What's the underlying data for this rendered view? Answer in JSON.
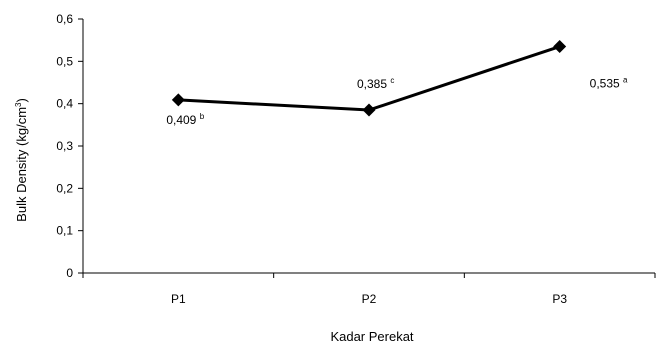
{
  "chart_data": {
    "type": "line",
    "title": "",
    "xlabel": "Kadar Perekat",
    "ylabel": "Bulk Density (kg/cm",
    "ylabel_superscript": "3",
    "ylabel_suffix": ")",
    "categories": [
      "P1",
      "P2",
      "P3"
    ],
    "series": [
      {
        "values": [
          0.409,
          0.385,
          0.535
        ],
        "color": "#000000",
        "marker": "diamond"
      }
    ],
    "data_labels": [
      {
        "text": "0,409",
        "sup": "b",
        "placement": "below"
      },
      {
        "text": "0,385",
        "sup": "c",
        "placement": "above"
      },
      {
        "text": "0,535",
        "sup": "a",
        "placement": "below-right"
      }
    ],
    "ylim": [
      0,
      0.6
    ],
    "yticks": [
      0,
      0.1,
      0.2,
      0.3,
      0.4,
      0.5,
      0.6
    ],
    "ytick_labels": [
      "0",
      "0,1",
      "0,2",
      "0,3",
      "0,4",
      "0,5",
      "0,6"
    ],
    "grid": false,
    "legend": "none"
  }
}
